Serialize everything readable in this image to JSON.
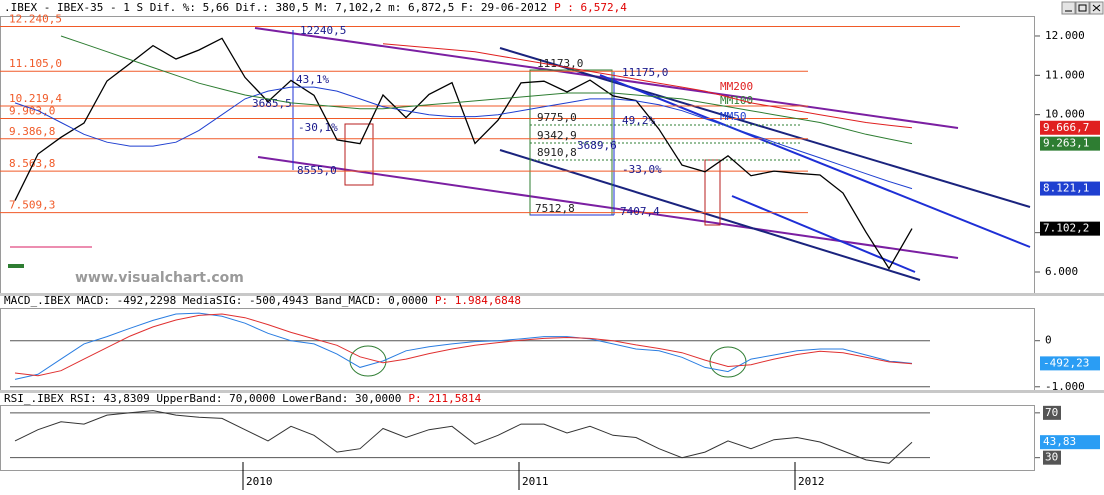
{
  "chart_data": [
    {
      "type": "line",
      "title": ".IBEX - IBEX-35 -  1 S Dif.  %: 5,66 Dif.: 380,5 M: 7,102,2 m: 6,872,5 F: 29-06-2012",
      "subtitle": "P : 6,572,4",
      "watermark": "www.visualchart.com",
      "ylim": [
        5466,
        12508
      ],
      "yticks": [
        {
          "value": 12000,
          "label": "12.000"
        },
        {
          "value": 11000,
          "label": "11.000"
        },
        {
          "value": 10000,
          "label": "10.000"
        },
        {
          "value": 7000,
          "label": "7.000"
        },
        {
          "value": 6000,
          "label": "6.000"
        }
      ],
      "grid": false,
      "level_color": "#f05a28",
      "levels": [
        {
          "value": 12240.5,
          "label": "12.240,5"
        },
        {
          "value": 11105.0,
          "label": "11.105,0"
        },
        {
          "value": 10219.4,
          "label": "10.219,4"
        },
        {
          "value": 9903.0,
          "label": "9.903,0"
        },
        {
          "value": 9386.8,
          "label": "9.386,8"
        },
        {
          "value": 8563.8,
          "label": "8.563,8"
        },
        {
          "value": 7509.3,
          "label": "7.509,3"
        }
      ],
      "annotations": [
        "12240,5",
        "11173,0",
        "11175,0",
        "-30,1%",
        "43,1%",
        "3685,5",
        "8555,0",
        "9775,0",
        "9342,9",
        "8910,8",
        "3689,6",
        "-33,0%",
        "49,2%",
        "7512,8",
        "7407,4"
      ],
      "series": [
        {
          "color": "#000000",
          "values": [
            7815,
            9000,
            9424,
            9787,
            10855,
            11300,
            11756,
            11414,
            11644,
            11940,
            10947,
            10333,
            10871,
            10492,
            9359,
            9263,
            10499,
            9924,
            10514,
            10812,
            9267,
            9859,
            10806,
            10850,
            10576,
            10879,
            10476,
            10359,
            9630,
            8718,
            8546,
            8955,
            8449,
            8566,
            8509,
            8465,
            8008,
            7011,
            6089,
            7102.2
          ],
          "value_labels": [
            null,
            null,
            null,
            null,
            null,
            null,
            null,
            null,
            null,
            null,
            null,
            null,
            null,
            null,
            null,
            null,
            null,
            null,
            null,
            null,
            null,
            null,
            null,
            null,
            null,
            null,
            null,
            null,
            null,
            null,
            null,
            null,
            null,
            null,
            null,
            null,
            null,
            null,
            null,
            "7.102,2"
          ]
        },
        {
          "name": "MM50",
          "color": "#1f3fd0",
          "values": [
            10300,
            10100,
            9800,
            9500,
            9300,
            9200,
            9200,
            9300,
            9600,
            10000,
            10400,
            10600,
            10700,
            10700,
            10600,
            10400,
            10200,
            10100,
            10000,
            9950,
            9950,
            10000,
            10100,
            10200,
            10300,
            10400,
            10400,
            10350,
            10250,
            10100,
            9900,
            9700,
            9500,
            9300,
            9100,
            8900,
            8700,
            8500,
            8300,
            8121.1
          ],
          "value_labels": [
            null,
            null,
            null,
            null,
            null,
            null,
            null,
            null,
            null,
            null,
            null,
            null,
            null,
            null,
            null,
            null,
            null,
            null,
            null,
            null,
            null,
            null,
            null,
            null,
            null,
            null,
            null,
            null,
            null,
            null,
            null,
            null,
            null,
            null,
            null,
            null,
            null,
            null,
            null,
            "8.121,1"
          ]
        },
        {
          "name": "MM100",
          "color": "#2e7d32",
          "values": [
            null,
            null,
            12000,
            11800,
            11600,
            11400,
            11200,
            11000,
            10800,
            10650,
            10500,
            10400,
            10300,
            10250,
            10200,
            10150,
            10150,
            10200,
            10250,
            10300,
            10350,
            10400,
            10450,
            10500,
            10550,
            10550,
            10550,
            10500,
            10450,
            10400,
            10300,
            10200,
            10100,
            10000,
            9900,
            9800,
            9650,
            9500,
            9380,
            9263.1
          ],
          "value_labels": [
            null,
            null,
            null,
            null,
            null,
            null,
            null,
            null,
            null,
            null,
            null,
            null,
            null,
            null,
            null,
            null,
            null,
            null,
            null,
            null,
            null,
            null,
            null,
            null,
            null,
            null,
            null,
            null,
            null,
            null,
            null,
            null,
            null,
            null,
            null,
            null,
            null,
            null,
            null,
            "9.263,1"
          ]
        },
        {
          "name": "MM200",
          "color": "#e02020",
          "values": [
            null,
            null,
            null,
            null,
            null,
            null,
            null,
            null,
            null,
            null,
            null,
            null,
            null,
            null,
            null,
            null,
            11800,
            11750,
            11700,
            11650,
            11600,
            11500,
            11400,
            11300,
            11200,
            11100,
            11000,
            10900,
            10800,
            10700,
            10600,
            10450,
            10300,
            10200,
            10100,
            10000,
            9900,
            9800,
            9730,
            9666.7
          ],
          "value_labels": [
            null,
            null,
            null,
            null,
            null,
            null,
            null,
            null,
            null,
            null,
            null,
            null,
            null,
            null,
            null,
            null,
            null,
            null,
            null,
            null,
            null,
            null,
            null,
            null,
            null,
            null,
            null,
            null,
            null,
            null,
            null,
            null,
            null,
            null,
            null,
            null,
            null,
            null,
            null,
            "9.666,7"
          ]
        }
      ]
    },
    {
      "type": "line",
      "title": "MACD_.IBEX MACD: -492,2298 MediaSIG: -500,4943 Band_MACD: 0,0000",
      "subtitle": "P: 1.984,6848",
      "ylim": [
        -1070,
        710
      ],
      "yticks": [
        0,
        {
          "value": -1000,
          "label": "-1.000"
        }
      ],
      "grid": true,
      "series": [
        {
          "color": "#2a7de1",
          "values": [
            -840,
            -730,
            -400,
            -70,
            90,
            270,
            440,
            580,
            600,
            530,
            380,
            160,
            0,
            -70,
            -290,
            -580,
            -440,
            -220,
            -130,
            -70,
            -20,
            0,
            40,
            90,
            90,
            40,
            -70,
            -180,
            -220,
            -360,
            -580,
            -670,
            -400,
            -310,
            -220,
            -180,
            -180,
            -310,
            -440,
            -492.2298
          ],
          "value_labels": [
            null,
            null,
            null,
            null,
            null,
            null,
            null,
            null,
            null,
            null,
            null,
            null,
            null,
            null,
            null,
            null,
            null,
            null,
            null,
            null,
            null,
            null,
            null,
            null,
            null,
            null,
            null,
            null,
            null,
            null,
            null,
            null,
            null,
            null,
            null,
            null,
            null,
            null,
            null,
            "-492,23"
          ]
        },
        {
          "color": "#e03030",
          "values": [
            -700,
            -760,
            -650,
            -400,
            -150,
            100,
            300,
            450,
            550,
            580,
            500,
            350,
            180,
            40,
            -100,
            -350,
            -480,
            -400,
            -280,
            -180,
            -100,
            -40,
            10,
            50,
            70,
            50,
            0,
            -90,
            -170,
            -260,
            -420,
            -560,
            -520,
            -400,
            -300,
            -230,
            -260,
            -360,
            -460,
            -500.4943
          ]
        }
      ]
    },
    {
      "type": "line",
      "title": "RSI_.IBEX RSI: 43,8309 UpperBand: 70,0000 LowerBand: 30,0000",
      "subtitle": "P: 211,5814",
      "ylim": [
        19,
        77
      ],
      "yticks": [
        70,
        30
      ],
      "grid": true,
      "categories": [
        null,
        null,
        null,
        null,
        null,
        null,
        null,
        null,
        null,
        null,
        "2010",
        null,
        null,
        null,
        null,
        null,
        null,
        null,
        null,
        null,
        null,
        null,
        "2011",
        null,
        null,
        null,
        null,
        null,
        null,
        null,
        null,
        null,
        null,
        null,
        "2012",
        null,
        null,
        null,
        null,
        null
      ],
      "series": [
        {
          "color": "#333333",
          "values": [
            45,
            55,
            62,
            60,
            68,
            70,
            72,
            68,
            66,
            65,
            55,
            45,
            58,
            50,
            35,
            38,
            56,
            48,
            55,
            58,
            42,
            50,
            60,
            60,
            52,
            58,
            50,
            48,
            38,
            30,
            35,
            45,
            38,
            46,
            48,
            44,
            36,
            28,
            25,
            43.8309
          ],
          "value_labels": [
            null,
            null,
            null,
            null,
            null,
            null,
            null,
            null,
            null,
            null,
            null,
            null,
            null,
            null,
            null,
            null,
            null,
            null,
            null,
            null,
            null,
            null,
            null,
            null,
            null,
            null,
            null,
            null,
            null,
            null,
            null,
            null,
            null,
            null,
            null,
            null,
            null,
            null,
            null,
            "43,83"
          ]
        }
      ]
    }
  ]
}
